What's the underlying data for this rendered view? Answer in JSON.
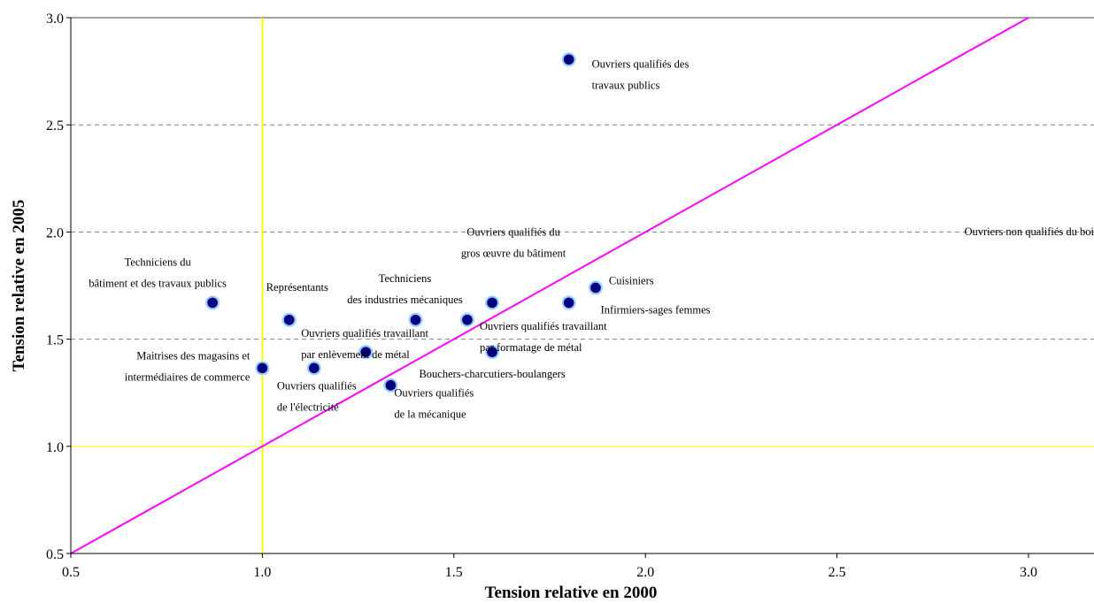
{
  "colors": {
    "point_fill": "#000080",
    "point_halo": "#99CCFF",
    "diagonal": "#FF00FF",
    "reference": "#FFFF00",
    "grid": "#808080"
  },
  "chart_data": {
    "type": "scatter",
    "title": "",
    "xlabel": "Tension relative en 2000",
    "ylabel": "Tension relative en 2005",
    "xlim": [
      0.5,
      3.18
    ],
    "ylim": [
      0.5,
      3.0
    ],
    "x_ticks": [
      "0.5",
      "1.0",
      "1.5",
      "2.0",
      "2.5",
      "3.0"
    ],
    "y_ticks": [
      "0.5",
      "1.0",
      "1.5",
      "2.0",
      "2.5",
      "3.0"
    ],
    "grid": "horizontal dashed",
    "reference_lines": [
      {
        "orientation": "vertical",
        "value": 1.0
      },
      {
        "orientation": "horizontal",
        "value": 1.0
      },
      {
        "orientation": "diagonal",
        "from": [
          0.5,
          0.5
        ],
        "to": [
          3.0,
          3.0
        ]
      }
    ],
    "points": [
      {
        "x": 0.87,
        "y": 1.67,
        "label": [
          "Techniciens du",
          "bâtiment et des travaux publics"
        ]
      },
      {
        "x": 1.0,
        "y": 1.365,
        "label": [
          "Maitrises des magasins et",
          "intermédiaires de commerce"
        ]
      },
      {
        "x": 1.07,
        "y": 1.59,
        "label": [
          "Représentants"
        ]
      },
      {
        "x": 1.135,
        "y": 1.365,
        "label": [
          "Ouvriers qualifiés",
          "de l'électricité"
        ]
      },
      {
        "x": 1.27,
        "y": 1.44,
        "label": [
          "Ouvriers qualifiés travaillant",
          "par enlèvement de métal"
        ]
      },
      {
        "x": 1.335,
        "y": 1.285,
        "label": [
          "Ouvriers qualifiés",
          "de la mécanique"
        ]
      },
      {
        "x": 1.4,
        "y": 1.59,
        "label": [
          "Techniciens",
          "des industries mécaniques"
        ]
      },
      {
        "x": 1.535,
        "y": 1.59,
        "label": [
          "Ouvriers qualifiés travaillant",
          "par formatage de métal"
        ]
      },
      {
        "x": 1.6,
        "y": 1.67,
        "label": [
          "Ouvriers qualifiés du",
          "gros œuvre du bâtiment"
        ]
      },
      {
        "x": 1.6,
        "y": 1.44,
        "label": [
          "Bouchers-charcutiers-boulangers"
        ]
      },
      {
        "x": 1.8,
        "y": 1.67,
        "label": [
          "Infirmiers-sages femmes"
        ]
      },
      {
        "x": 1.87,
        "y": 1.74,
        "label": [
          "Cuisiniers"
        ]
      },
      {
        "x": 1.8,
        "y": 2.805,
        "label": [
          "Ouvriers qualifiés des",
          "travaux publics"
        ]
      }
    ],
    "annotations": [
      {
        "text": "Ouvriers non qualifiés du boi"
      }
    ]
  }
}
